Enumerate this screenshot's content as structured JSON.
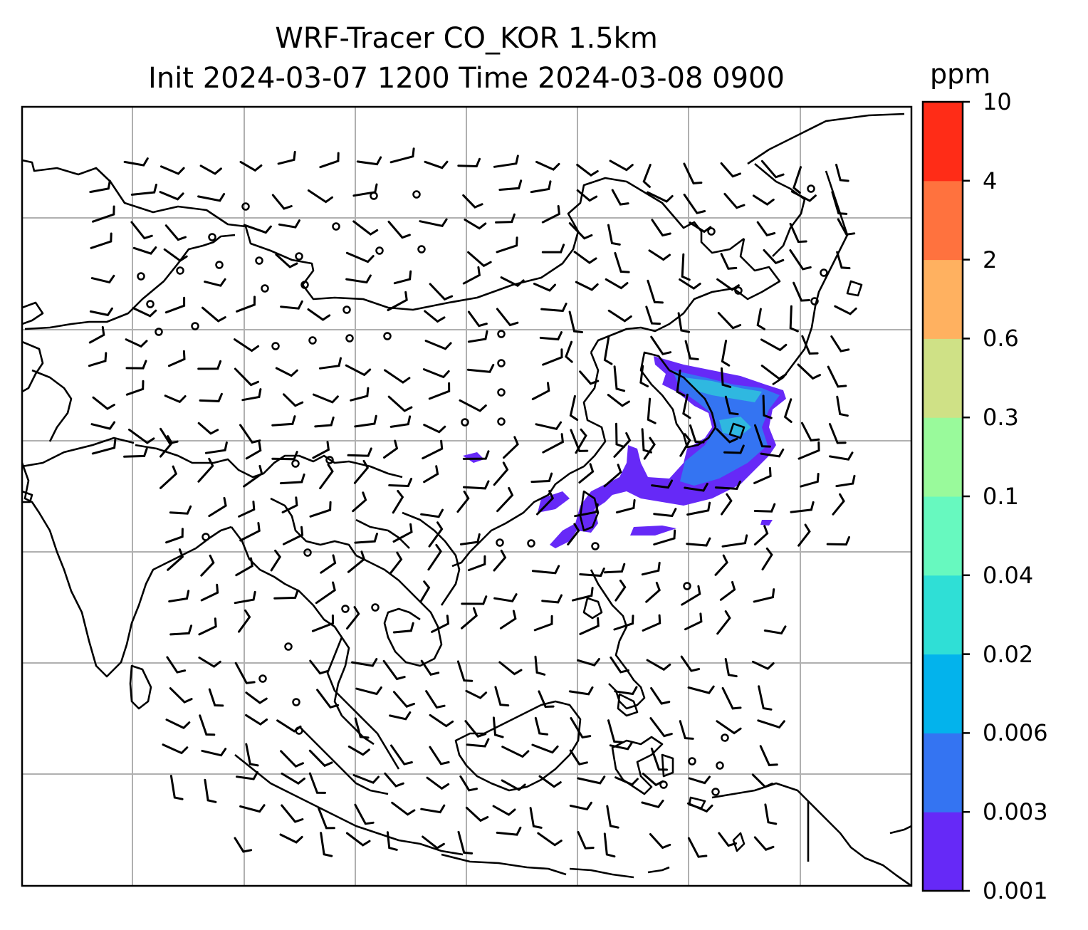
{
  "title": {
    "line1": "WRF-Tracer CO_KOR 1.5km",
    "line2": "Init 2024-03-07 1200 Time 2024-03-08 0900"
  },
  "colorbar": {
    "unit": "ppm",
    "levels": [
      "0.001",
      "0.003",
      "0.006",
      "0.02",
      "0.04",
      "0.1",
      "0.3",
      "0.6",
      "2",
      "4",
      "10"
    ],
    "colors": [
      "#6629f7",
      "#3474f2",
      "#03b3ec",
      "#2fdfd6",
      "#67f9bf",
      "#99fa9b",
      "#cfe186",
      "#ffb160",
      "#ff723e",
      "#ff2c17"
    ]
  },
  "map": {
    "gridlines": true,
    "grid_color": "#b0b0b0",
    "coastline_color": "#000000",
    "plume_colors": {
      "low": "#6629f7",
      "mid": "#3474f2",
      "high": "#2fb8e0"
    }
  }
}
